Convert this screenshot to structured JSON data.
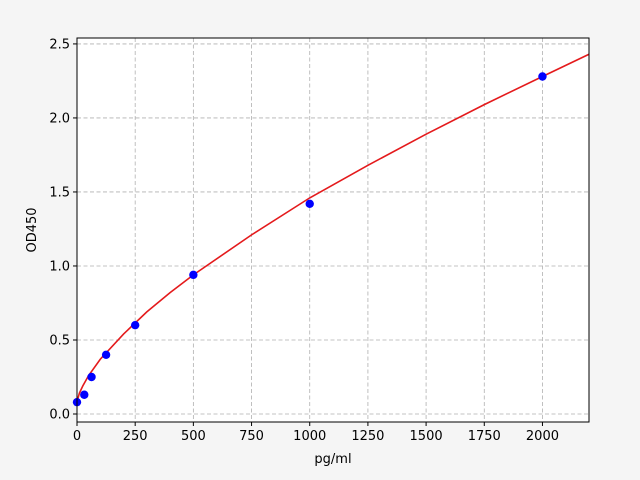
{
  "chart_data": {
    "type": "scatter",
    "title": "",
    "xlabel": "pg/ml",
    "ylabel": "OD450",
    "xlim": [
      0,
      2200
    ],
    "ylim": [
      -0.054,
      2.54
    ],
    "x_ticks": [
      0,
      250,
      500,
      750,
      1000,
      1250,
      1500,
      1750,
      2000
    ],
    "y_ticks": [
      0.0,
      0.5,
      1.0,
      1.5,
      2.0,
      2.5
    ],
    "x_tick_labels": [
      "0",
      "250",
      "500",
      "750",
      "1000",
      "1250",
      "1500",
      "1750",
      "2000"
    ],
    "y_tick_labels": [
      "0.0",
      "0.5",
      "1.0",
      "1.5",
      "2.0",
      "2.5"
    ],
    "grid": true,
    "points": {
      "color": "#0000ff",
      "x": [
        0,
        31.25,
        62.5,
        125,
        250,
        500,
        1000,
        2000
      ],
      "y": [
        0.08,
        0.13,
        0.25,
        0.4,
        0.6,
        0.94,
        1.42,
        2.28
      ]
    },
    "fit_curve": {
      "color": "#e41a1c",
      "x": [
        0,
        10,
        25,
        50,
        100,
        200,
        300,
        400,
        500,
        750,
        1000,
        1250,
        1500,
        1750,
        2000,
        2200
      ],
      "y": [
        0.08,
        0.14,
        0.19,
        0.26,
        0.37,
        0.54,
        0.69,
        0.82,
        0.94,
        1.21,
        1.46,
        1.68,
        1.89,
        2.09,
        2.28,
        2.43
      ]
    }
  }
}
